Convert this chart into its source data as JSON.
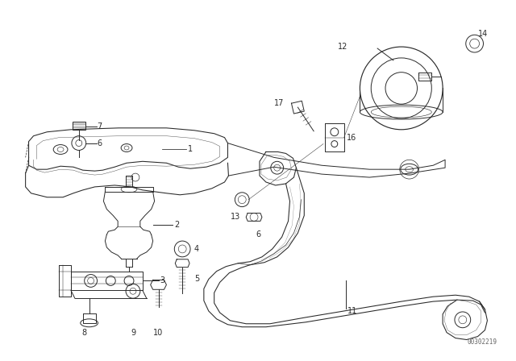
{
  "background_color": "#ffffff",
  "diagram_id": "00302219",
  "figsize": [
    6.4,
    4.48
  ],
  "dpi": 100,
  "line_color": "#2a2a2a",
  "line_width": 0.7,
  "font_size": 7.0,
  "watermark": {
    "text": "00302219",
    "fontsize": 5.5,
    "color": "#666666"
  }
}
